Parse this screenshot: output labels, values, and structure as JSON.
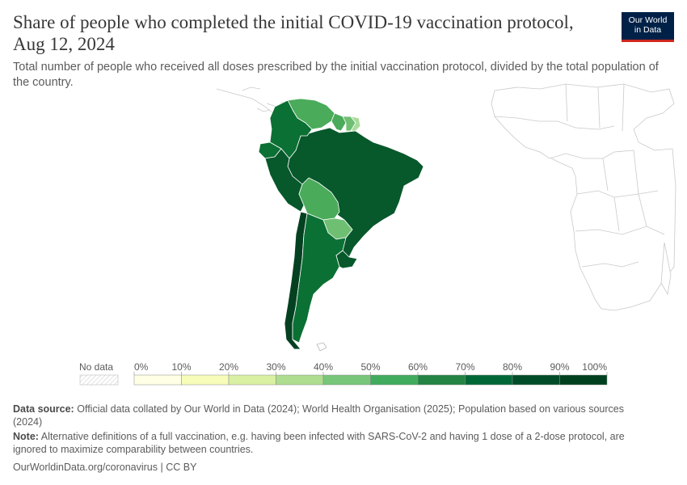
{
  "header": {
    "title": "Share of people who completed the initial COVID-19 vaccination protocol, Aug 12, 2024",
    "subtitle": "Total number of people who received all doses prescribed by the initial vaccination protocol, divided by the total population of the country."
  },
  "logo": {
    "line1": "Our World",
    "line2": "in Data",
    "bg_color": "#002147",
    "accent_color": "#ce261e"
  },
  "map": {
    "region_shown": "South America",
    "regions": [
      {
        "name": "Venezuela",
        "bin": "50-60%",
        "color": "#4aab5a"
      },
      {
        "name": "Colombia",
        "bin": "70-80%",
        "color": "#0b7034"
      },
      {
        "name": "Ecuador",
        "bin": "70-80%",
        "color": "#0b7034"
      },
      {
        "name": "Peru",
        "bin": "80-90%",
        "color": "#07582b"
      },
      {
        "name": "Brazil",
        "bin": "80-90%",
        "color": "#07582b"
      },
      {
        "name": "Bolivia",
        "bin": "50-60%",
        "color": "#4aab5a"
      },
      {
        "name": "Paraguay",
        "bin": "40-50%",
        "color": "#6fbf73"
      },
      {
        "name": "Chile",
        "bin": "90-100%",
        "color": "#044121"
      },
      {
        "name": "Argentina",
        "bin": "70-80%",
        "color": "#0b7034"
      },
      {
        "name": "Uruguay",
        "bin": "80-90%",
        "color": "#07582b"
      },
      {
        "name": "Guyana",
        "bin": "50-60%",
        "color": "#4aab5a"
      },
      {
        "name": "Suriname",
        "bin": "40-50%",
        "color": "#6fbf73"
      },
      {
        "name": "French Guiana",
        "bin": "30-40%",
        "color": "#a8dc9a"
      },
      {
        "name": "Falkland Islands",
        "bin": "No data",
        "color": "#ffffff"
      }
    ]
  },
  "legend": {
    "no_data_label": "No data",
    "ticks": [
      "0%",
      "10%",
      "20%",
      "30%",
      "40%",
      "50%",
      "60%",
      "70%",
      "80%",
      "90%",
      "100%"
    ],
    "colors": [
      "#ffffe5",
      "#f7fcb9",
      "#d9f0a3",
      "#addd8e",
      "#78c679",
      "#41ab5d",
      "#238443",
      "#006837",
      "#004c29",
      "#00401f"
    ]
  },
  "footer": {
    "source_label": "Data source:",
    "source_text": "Official data collated by Our World in Data (2024); World Health Organisation (2025); Population based on various sources (2024)",
    "note_label": "Note:",
    "note_text": "Alternative definitions of a full vaccination, e.g. having been infected with SARS-CoV-2 and having 1 dose of a 2-dose protocol, are ignored to maximize comparability between countries.",
    "url_text": "OurWorldinData.org/coronavirus | CC BY"
  }
}
